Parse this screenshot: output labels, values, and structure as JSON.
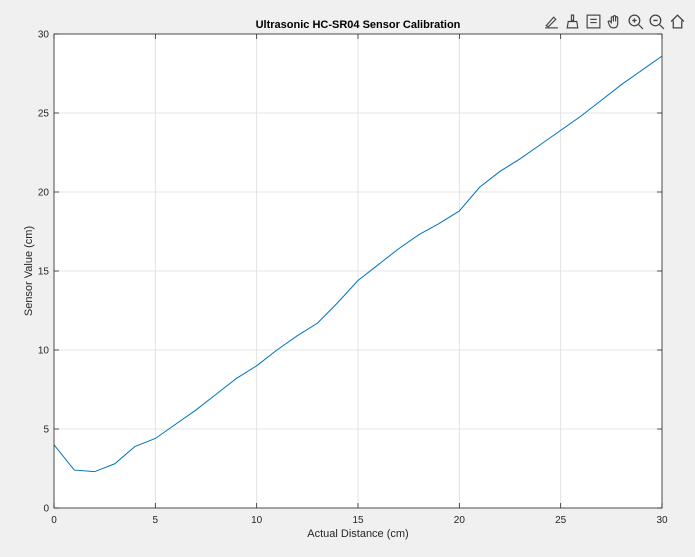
{
  "toolbar": {
    "icons": [
      "brush-data-icon",
      "clean-icon",
      "data-tips-icon",
      "pan-icon",
      "zoom-in-icon",
      "zoom-out-icon",
      "home-icon"
    ]
  },
  "chart_data": {
    "type": "line",
    "title": "Ultrasonic HC-SR04 Sensor Calibration",
    "xlabel": "Actual Distance (cm)",
    "ylabel": "Sensor Value (cm)",
    "xlim": [
      0,
      30
    ],
    "ylim": [
      0,
      30
    ],
    "xticks": [
      0,
      5,
      10,
      15,
      20,
      25,
      30
    ],
    "yticks": [
      0,
      5,
      10,
      15,
      20,
      25,
      30
    ],
    "grid": true,
    "series": [
      {
        "color": "#0072bd",
        "x": [
          0,
          1,
          2,
          3,
          4,
          5,
          6,
          7,
          8,
          9,
          10,
          11,
          12,
          13,
          14,
          15,
          16,
          17,
          18,
          19,
          20,
          21,
          22,
          23,
          24,
          25,
          26,
          27,
          28,
          29,
          30
        ],
        "values": [
          4.0,
          2.4,
          2.3,
          2.8,
          3.9,
          4.4,
          5.3,
          6.2,
          7.2,
          8.2,
          9.0,
          10.0,
          10.9,
          11.7,
          13.0,
          14.4,
          15.4,
          16.4,
          17.3,
          18.0,
          18.8,
          20.3,
          21.3,
          22.1,
          23.0,
          23.9,
          24.8,
          25.8,
          26.8,
          27.7,
          28.6
        ]
      }
    ]
  }
}
